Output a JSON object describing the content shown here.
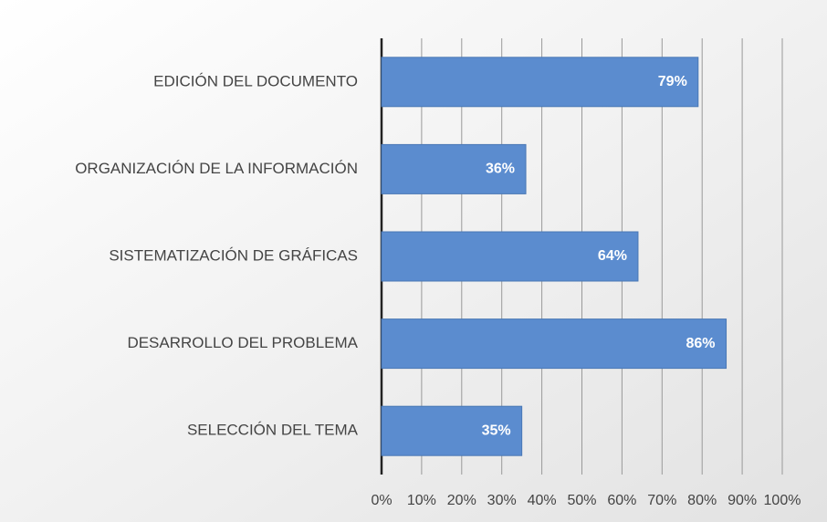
{
  "chart_data": {
    "type": "hbar",
    "categories": [
      "EDICIÓN DEL DOCUMENTO",
      "ORGANIZACIÓN DE LA INFORMACIÓN",
      "SISTEMATIZACIÓN DE GRÁFICAS",
      "DESARROLLO DEL PROBLEMA",
      "SELECCIÓN DEL TEMA"
    ],
    "values": [
      79,
      36,
      64,
      86,
      35
    ],
    "value_labels": [
      "79%",
      "36%",
      "64%",
      "86%",
      "35%"
    ],
    "color": "#5b8ccf",
    "xlim": [
      0,
      100
    ],
    "xticks": [
      {
        "value": 0,
        "label": "0%"
      },
      {
        "value": 10,
        "label": "10%"
      },
      {
        "value": 20,
        "label": "20%"
      },
      {
        "value": 30,
        "label": "30%"
      },
      {
        "value": 40,
        "label": "40%"
      },
      {
        "value": 50,
        "label": "50%"
      },
      {
        "value": 60,
        "label": "60%"
      },
      {
        "value": 70,
        "label": "70%"
      },
      {
        "value": 80,
        "label": "80%"
      },
      {
        "value": 90,
        "label": "90%"
      },
      {
        "value": 100,
        "label": "100%"
      }
    ],
    "grid": true
  }
}
